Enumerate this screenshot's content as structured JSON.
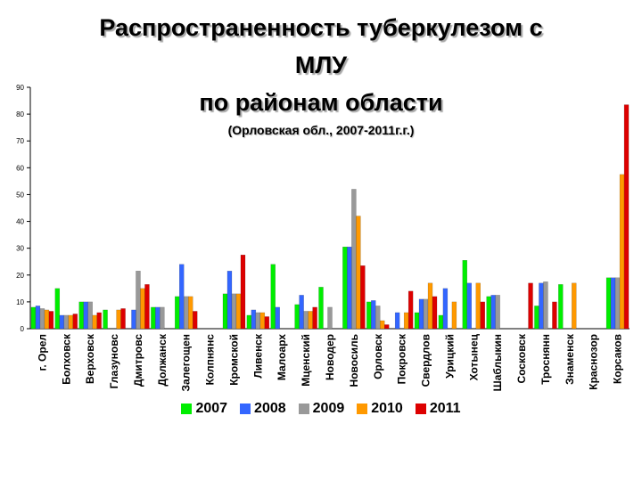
{
  "title_line1": "Распространенность туберкулезом с",
  "title_line2": "МЛУ",
  "title_line3": "по районам области",
  "subtitle": "(Орловская обл., 2007-2011г.г.)",
  "colors": {
    "2007": "#00ee00",
    "2008": "#3366ff",
    "2009": "#999999",
    "2010": "#ff9900",
    "2011": "#dd0000"
  },
  "chart_data": {
    "type": "bar",
    "ylim": [
      0,
      90
    ],
    "yticks": [
      0,
      10,
      20,
      30,
      40,
      50,
      60,
      70,
      80,
      90
    ],
    "grid": false,
    "legend": "bottom",
    "categories": [
      "г. Орел",
      "Болховск",
      "Верховск",
      "Глазуновс",
      "Дмитровс",
      "Должанск",
      "Залегощен",
      "Колпнянс",
      "Кромской",
      "Ливенск",
      "Малоарх",
      "Мценский",
      "Новодер",
      "Новосиль",
      "Орловск",
      "Покровск",
      "Свердлов",
      "Урицкий",
      "Хотынец",
      "Шаблыкин",
      "Сосковск",
      "Троснянн",
      "Знаменск",
      "Краснозор",
      "Корсаков"
    ],
    "series": [
      {
        "name": "2007",
        "values": [
          8,
          15,
          10,
          7,
          0,
          8,
          12,
          0,
          13,
          5,
          24,
          9,
          15.5,
          30.5,
          10,
          0,
          6,
          5,
          25.5,
          12,
          0,
          8.5,
          16.5,
          0,
          19
        ]
      },
      {
        "name": "2008",
        "values": [
          8.5,
          5,
          10,
          0,
          7,
          8,
          24,
          0,
          21.5,
          7,
          8,
          12.5,
          0,
          30.5,
          10.5,
          6,
          11,
          15,
          17,
          12.5,
          0,
          17,
          0,
          0,
          19
        ]
      },
      {
        "name": "2009",
        "values": [
          7.5,
          5,
          10,
          0,
          21.5,
          8,
          12,
          0,
          13,
          6,
          0,
          6.5,
          8,
          52,
          8.5,
          0,
          11,
          0,
          0,
          12.5,
          0,
          17.5,
          0,
          0,
          19
        ]
      },
      {
        "name": "2010",
        "values": [
          7,
          5,
          5,
          7,
          15,
          0,
          12,
          0,
          13,
          6,
          0,
          6.5,
          0,
          42,
          3,
          6,
          17,
          10,
          17,
          0,
          0,
          0,
          17,
          0,
          57.5
        ]
      },
      {
        "name": "2011",
        "values": [
          6.5,
          5.5,
          6,
          7.5,
          16.5,
          0,
          6.5,
          0,
          27.5,
          4.5,
          0,
          8,
          0,
          23.5,
          1.5,
          14,
          12,
          0,
          10,
          0,
          17,
          10,
          0,
          0,
          83.5
        ]
      }
    ]
  }
}
